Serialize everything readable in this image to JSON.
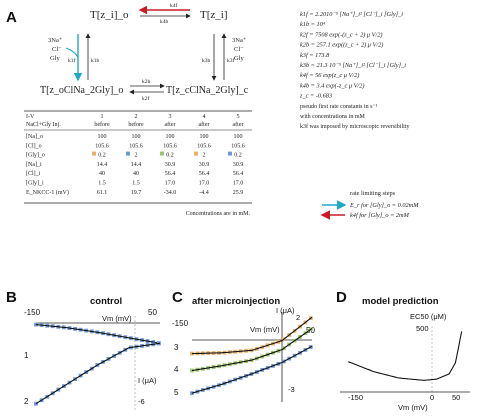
{
  "panels": {
    "A": {
      "letter": "A",
      "scheme": {
        "s_tl": "T[z_i]_o",
        "s_tr": "T[z_i]",
        "s_bl": "T[z_oClNa_2Gly]_o",
        "s_br": "T[z_cClNa_2Gly]_c",
        "k4f": "k4f",
        "k4b": "k4b",
        "k1f": "k1f",
        "k1b": "k1b",
        "k3f": "k3f",
        "k3b": "k3b",
        "k2b": "k2b",
        "k2f": "k2f",
        "left_ions": [
          "3Na⁺",
          "Cl⁻",
          "Gly"
        ],
        "right_ions": [
          "3Na⁺",
          "Cl⁻",
          "Gly"
        ]
      },
      "table": {
        "header1": [
          "I-V",
          "1",
          "2",
          "3",
          "4",
          "5"
        ],
        "header2": [
          "NaCl+Gly Inj.",
          "before",
          "before",
          "after",
          "after",
          "after"
        ],
        "rows": [
          {
            "label": "[Na]_o",
            "values": [
              "100",
              "100",
              "100",
              "100",
              "100"
            ]
          },
          {
            "label": "[Cl]_o",
            "values": [
              "105.6",
              "105.6",
              "105.6",
              "105.6",
              "105.6"
            ]
          },
          {
            "label": "[Gly]_o",
            "values": [
              "0.2",
              "2",
              "0.2",
              "2",
              "0.2"
            ]
          },
          {
            "label": "[Na]_i",
            "values": [
              "14.4",
              "14.4",
              "30.9",
              "30.9",
              "30.9"
            ]
          },
          {
            "label": "[Cl]_i",
            "values": [
              "40",
              "40",
              "56.4",
              "56.4",
              "56.4"
            ]
          },
          {
            "label": "[Gly]_i",
            "values": [
              "1.5",
              "1.5",
              "17.0",
              "17.0",
              "17.0"
            ]
          },
          {
            "label": "E_NKCC-1 (mV)",
            "values": [
              "61.1",
              "19.7",
              "-34.0",
              "-4.4",
              "25.9"
            ]
          }
        ],
        "footnote": "Concentrations are in mM."
      },
      "equations": [
        "k1f = 2.2010⁻⁵ [Na⁺]_i² [Cl⁻]_i [Gly]_i",
        "k1b = 10⁴",
        "k2f = 7508 exp(-(z_c + 2) μ V/2)",
        "k2b = 257.1 exp((z_c + 2) μ V/2)",
        "k3f = 173.8",
        "k3b = 21.3 10⁻⁵ [Na⁺]_i² [Cl⁻]_i [Gly]_i",
        "k4f = 56 exp(z_c μ V/2)",
        "k4b = 3.4 exp(-z_c μ V/2)",
        "z_c = -0.683",
        "pseudo first rate constants in s⁻¹",
        "with concentrations in mM",
        "k3f was imposed by microscopic reversibility"
      ],
      "legend": {
        "title": "rate limiting steps",
        "item1": "E_r for [Gly]_o = 0.02mM",
        "item2": "k4f for [Gly]_o = 2mM"
      }
    },
    "B": {
      "letter": "B",
      "title": "control",
      "vm_label": "Vm (mV)",
      "i_label": "I (μA)",
      "x_tick_min": "-150",
      "x_tick_max": "50",
      "y_tick_neg": "-6",
      "curve_labels": [
        "1",
        "2"
      ]
    },
    "C": {
      "letter": "C",
      "title": "after microinjection",
      "vm_label": "Vm (mV)",
      "i_label": "I (μA)",
      "x_tick_min": "-150",
      "x_tick_max": "50",
      "y_tick_pos": "2",
      "y_tick_neg": "-3",
      "curve_labels": [
        "3",
        "4",
        "5"
      ]
    },
    "D": {
      "letter": "D",
      "title": "model prediction",
      "y_label": "EC50 (μM)",
      "y_tick": "500",
      "x_tick_min": "-150",
      "x_tick_mid": "0",
      "x_tick_max": "50",
      "x_label": "Vm (mV)"
    }
  },
  "colors": {
    "cyan": "#1ea9c9",
    "red": "#c81d26",
    "orange_marker": "#e9b06a",
    "green_marker": "#9cc56d",
    "blue_marker": "#6f98d8"
  },
  "chart_data": [
    {
      "type": "line",
      "panel": "B",
      "title": "control",
      "xlabel": "Vm (mV)",
      "ylabel": "I (μA)",
      "xlim": [
        -150,
        50
      ],
      "ylim": [
        -6,
        1
      ],
      "series": [
        {
          "name": "1",
          "x": [
            -150,
            -100,
            -50,
            0,
            50
          ],
          "y": [
            -0.12,
            -0.36,
            -0.72,
            -1.14,
            -1.56
          ]
        },
        {
          "name": "2",
          "x": [
            -150,
            -100,
            -50,
            0,
            50
          ],
          "y": [
            -6.2,
            -4.7,
            -3.2,
            -1.9,
            -1.56
          ]
        }
      ]
    },
    {
      "type": "line",
      "panel": "C",
      "title": "after microinjection",
      "xlabel": "Vm (mV)",
      "ylabel": "I (μA)",
      "xlim": [
        -150,
        50
      ],
      "ylim": [
        -3,
        2
      ],
      "series": [
        {
          "name": "3",
          "x": [
            -150,
            -100,
            -50,
            0,
            50
          ],
          "y": [
            -0.25,
            -0.2,
            -0.05,
            0.55,
            2.0
          ]
        },
        {
          "name": "4",
          "x": [
            -150,
            -100,
            -50,
            0,
            50
          ],
          "y": [
            -1.3,
            -1.0,
            -0.65,
            0.0,
            1.3
          ]
        },
        {
          "name": "5",
          "x": [
            -150,
            -100,
            -50,
            0,
            50
          ],
          "y": [
            -2.7,
            -2.15,
            -1.5,
            -0.8,
            0.2
          ]
        }
      ]
    },
    {
      "type": "line",
      "panel": "D",
      "title": "model prediction",
      "xlabel": "Vm (mV)",
      "ylabel": "EC50 (μM)",
      "xlim": [
        -150,
        50
      ],
      "ylim": [
        0,
        600
      ],
      "series": [
        {
          "x": [
            -140,
            -100,
            -60,
            -20,
            0,
            20,
            30,
            40
          ],
          "y": [
            260,
            175,
            120,
            100,
            110,
            155,
            250,
            520
          ]
        }
      ]
    }
  ]
}
